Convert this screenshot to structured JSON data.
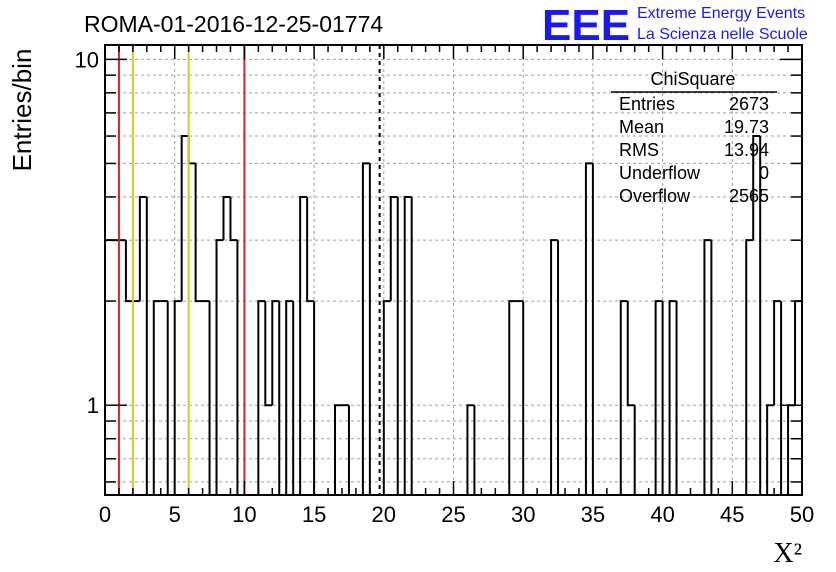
{
  "title": "ROMA-01-2016-12-25-01774",
  "logo": {
    "text": "EEE",
    "line1": "Extreme Energy Events",
    "line2": "La Scienza nelle Scuole",
    "color": "#1a1aee"
  },
  "stats": {
    "title": "ChiSquare",
    "rows": [
      {
        "label": "Entries",
        "value": "2673"
      },
      {
        "label": "Mean",
        "value": "19.73"
      },
      {
        "label": "RMS",
        "value": "13.94"
      },
      {
        "label": "Underflow",
        "value": "0"
      },
      {
        "label": "Overflow",
        "value": "2565"
      }
    ]
  },
  "chart_data": {
    "type": "bar",
    "title": "ROMA-01-2016-12-25-01774",
    "xlabel": "X²",
    "ylabel": "Entries/bin",
    "xlim": [
      0,
      50
    ],
    "ylim": [
      0.55,
      11
    ],
    "yscale": "log",
    "grid": true,
    "bin_width": 0.5,
    "x_ticks": [
      "0",
      "5",
      "10",
      "15",
      "20",
      "25",
      "30",
      "35",
      "40",
      "45",
      "50"
    ],
    "y_ticks": [
      "1",
      "10"
    ],
    "values": [
      3,
      3,
      3,
      2,
      2,
      4,
      0,
      2,
      2,
      0,
      2,
      6,
      5,
      2,
      2,
      0,
      3,
      4,
      3,
      0,
      0,
      0,
      2,
      1,
      2,
      0,
      2,
      0,
      4,
      2,
      0,
      0,
      0,
      1,
      1,
      0,
      0,
      5,
      0,
      0,
      2,
      4,
      0,
      4,
      0,
      0,
      0,
      0,
      0,
      0,
      0,
      0,
      1,
      0,
      0,
      0,
      0,
      0,
      2,
      2,
      0,
      0,
      0,
      0,
      3,
      0,
      0,
      0,
      0,
      5,
      0,
      0,
      0,
      0,
      2,
      1,
      0,
      0,
      0,
      2,
      0,
      2,
      0,
      0,
      0,
      0,
      3,
      0,
      0,
      0,
      0,
      0,
      3,
      6,
      0,
      1,
      2,
      0,
      1,
      2
    ],
    "reference_lines": [
      {
        "x": 1,
        "color": "#e02020"
      },
      {
        "x": 2,
        "color": "#f0c020"
      },
      {
        "x": 6,
        "color": "#f0c020"
      },
      {
        "x": 10,
        "color": "#e02020"
      },
      {
        "x": 19.7,
        "color": "#000000",
        "dashed": true
      }
    ]
  }
}
